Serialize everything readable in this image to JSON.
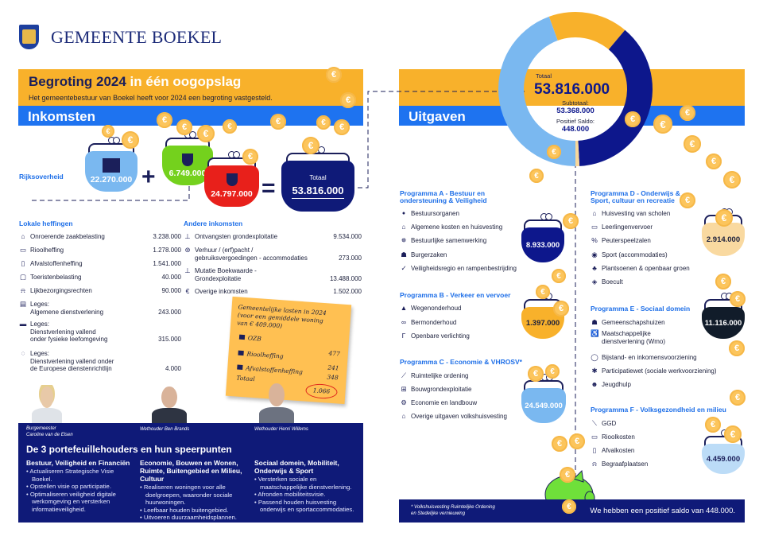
{
  "header": {
    "org_name": "GEMEENTE BOEKEL"
  },
  "banner": {
    "title_bold": "Begroting 2024",
    "title_rest": " in één oogopslag",
    "subtitle": "Het gemeentebestuur van Boekel heeft voor 2024 een begroting vastgesteld."
  },
  "income": {
    "label": "Inkomsten",
    "rijk_label": "Rijksoverheid",
    "rijk_amount": "22.270.000",
    "green_amount": "6.749.000",
    "red_amount": "24.797.000",
    "total_label": "Totaal",
    "total_amount": "53.816.000",
    "plus": "+",
    "equals": "=",
    "local": {
      "title": "Lokale heffingen",
      "items": [
        {
          "icon": "house-icon",
          "label": "Onroerende zaakbelasting",
          "amount": "3.238.000"
        },
        {
          "icon": "sewer-icon",
          "label": "Rioolheffing",
          "amount": "1.278.000"
        },
        {
          "icon": "bin-icon",
          "label": "Afvalstoffenheffing",
          "amount": "1.541.000"
        },
        {
          "icon": "suitcase-icon",
          "label": "Toeristenbelasting",
          "amount": "40.000"
        },
        {
          "icon": "grave-icon",
          "label": "Lijkbezorgingsrechten",
          "amount": "90.000"
        },
        {
          "icon": "document-icon",
          "label": "Leges:\nAlgemene dienstverlening",
          "amount": "243.000"
        },
        {
          "icon": "landscape-icon",
          "label": "Leges:\nDienstverlening vallend\nonder fysieke leefomgeving",
          "amount": "315.000"
        },
        {
          "icon": "eu-stars-icon",
          "label": "Leges:\nDienstverlening vallend onder\nde Europese dienstenrichtlijn",
          "amount": "4.000"
        }
      ]
    },
    "other": {
      "title": "Andere inkomsten",
      "items": [
        {
          "icon": "shovel-icon",
          "label": "Ontvangsten grondexploitatie",
          "amount": "9.534.000"
        },
        {
          "icon": "lifebuoy-icon",
          "label": "Verhuur / (erf)pacht /\ngebruiksvergoedingen - accommodaties",
          "amount": "273.000"
        },
        {
          "icon": "shovel-icon",
          "label": "Mutatie Boekwaarde -\nGrondexploitatie",
          "amount": "13.488.000"
        },
        {
          "icon": "euro-icon",
          "label": "Overige inkomsten",
          "amount": "1.502.000"
        }
      ]
    }
  },
  "note": {
    "title": "Gemeentelijke lasten in 2024\n(voor een gemiddele woning\nvan € 409.000)",
    "rows": [
      {
        "label": "OZB",
        "value": "477"
      },
      {
        "label": "Rioolheffing",
        "value": "241"
      },
      {
        "label": "Afvalstoffenheffing",
        "value": "348"
      }
    ],
    "total_label": "Totaal",
    "total_value": "1.066"
  },
  "people": [
    {
      "caption": "Burgemeester\nCaroline van de Elsen"
    },
    {
      "caption": "Wethouder Ben Brands"
    },
    {
      "caption": "Wethouder Henri Willems"
    }
  ],
  "portfolio": {
    "title": "De 3 portefeuillehouders en hun speerpunten",
    "columns": [
      {
        "heading": "Bestuur, Veiligheid en Financiën",
        "items": [
          "Actualiseren Strategische Visie Boekel.",
          "Opstellen visie op participatie.",
          "Optimaliseren veiligheid digitale werkomgeving en versterken informatieveiligheid."
        ]
      },
      {
        "heading": "Economie, Bouwen en Wonen, Ruimte, Buitengebied en Milieu, Cultuur",
        "items": [
          "Realiseren woningen voor alle doelgroepen, waaronder sociale huurwoningen.",
          "Leefbaar houden buitengebied.",
          "Uitvoeren duurzaamheidsplannen."
        ]
      },
      {
        "heading": "Sociaal domein, Mobiliteit, Onderwijs & Sport",
        "items": [
          "Versterken sociale en maatschappelijke dienstverlening.",
          "Afronden mobiliteitsvisie.",
          "Passend houden huisvesting onderwijs en sportaccommodaties."
        ]
      }
    ]
  },
  "expenses": {
    "label": "Uitgaven",
    "donut": {
      "total_label": "Totaal",
      "total": "53.816.000",
      "subtotal_label": "Subtotaal:",
      "subtotal": "53.368.000",
      "saldo_label": "Positief Saldo:",
      "saldo": "448.000",
      "segment_colors": [
        "#7ab8f0",
        "#f8b12b",
        "#0d178c",
        "#f7d79a"
      ]
    },
    "programs": [
      {
        "title": "Programma A - Bestuur en\nondersteuning & Veiligheid",
        "amount": "8.933.000",
        "color": "#0d178c",
        "text_color": "#ffffff",
        "items": [
          "Bestuursorganen",
          "Algemene kosten en huisvesting",
          "Bestuurlijke samenwerking",
          "Burgerzaken",
          "Veiligheidsregio en rampenbestrijding"
        ],
        "icons": [
          "org-chart-icon",
          "house-icon",
          "gear-icon",
          "people-icon",
          "check-icon"
        ]
      },
      {
        "title": "Programma B - Verkeer en vervoer",
        "amount": "1.397.000",
        "color": "#f8b12b",
        "text_color": "#1b1f3b",
        "items": [
          "Wegenonderhoud",
          "Bermonderhoud",
          "Openbare verlichting"
        ],
        "icons": [
          "traffic-cone-icon",
          "bicycle-icon",
          "streetlight-icon"
        ]
      },
      {
        "title": "Programma C - Economie & VHROSV*",
        "amount": "24.549.000",
        "color": "#7ab8f0",
        "text_color": "#ffffff",
        "items": [
          "Ruimtelijke ordening",
          "Bouwgrondexploitatie",
          "Economie en landbouw",
          "Overige uitgaven volkshuisvesting"
        ],
        "icons": [
          "compass-icon",
          "floorplan-icon",
          "tractor-icon",
          "house-euro-icon"
        ]
      },
      {
        "title": "Programma D - Onderwijs &\nSport, cultuur en recreatie",
        "amount": "2.914.000",
        "color": "#f9d9a0",
        "text_color": "#1b1f3b",
        "items": [
          "Huisvesting van scholen",
          "Leerlingenvervoer",
          "Peuterspeelzalen",
          "Sport (accommodaties)",
          "Plantsoenen & openbaar groen",
          "Boecult"
        ],
        "icons": [
          "school-icon",
          "bus-icon",
          "toys-icon",
          "ball-icon",
          "tree-icon",
          "culture-icon"
        ]
      },
      {
        "title": "Programma E - Sociaal domein",
        "amount": "11.116.000",
        "color": "#111c2a",
        "text_color": "#ffffff",
        "items": [
          "Gemeenschapshuizen",
          "Maatschappelijke\ndienstverlening (Wmo)",
          "Bijstand- en inkomensvoorziening",
          "Participatiewet (sociale werkvoorziening)",
          "Jeugdhulp"
        ],
        "icons": [
          "community-icon",
          "wheelchair-icon",
          "moneybag-icon",
          "worker-icon",
          "child-icon"
        ]
      },
      {
        "title": "Programma F - Volksgezondheid en milieu",
        "amount": "4.459.000",
        "color": "#bcdcf7",
        "text_color": "#1b1f5a",
        "items": [
          "GGD",
          "Rioolkosten",
          "Afvalkosten",
          "Begraafplaatsen"
        ],
        "icons": [
          "syringe-icon",
          "sewer-icon",
          "bin-icon",
          "grave-icon"
        ]
      }
    ],
    "footnote": "* Volkshuisvesting Ruimtelijke Ordening\nen Stedelijke vernieuwing",
    "saldo_message": "We hebben een positief saldo van 448.000."
  },
  "colors": {
    "navy": "#0f1a78",
    "orange": "#f8b12b",
    "blue": "#1e73f0",
    "coin": "#fcc55c",
    "piggy": "#6fe03a"
  }
}
